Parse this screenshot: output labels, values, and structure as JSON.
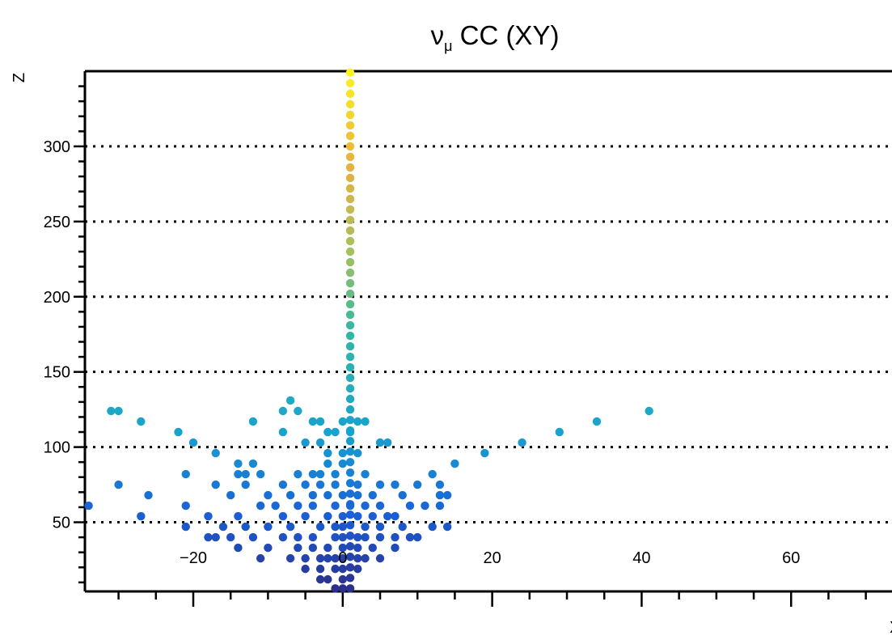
{
  "chart_data": {
    "type": "scatter",
    "title": "ν_μ CC (XY)",
    "title_main": "ν",
    "title_sub": "μ",
    "title_rest": " CC (XY)",
    "xlabel": "X",
    "ylabel": "Z",
    "xlim": [
      -34.5,
      73.5
    ],
    "ylim": [
      4,
      350
    ],
    "x_ticks": [
      -20,
      0,
      20,
      40,
      60
    ],
    "y_ticks": [
      50,
      100,
      150,
      200,
      250,
      300
    ],
    "grid": "horizontal-dotted",
    "colormap": [
      "#2c2f8c",
      "#1a5fd6",
      "#18a2cf",
      "#34b7a3",
      "#a5c05f",
      "#e6b13f",
      "#fbf41f"
    ],
    "series": [
      {
        "points": [
          [
            1,
            6
          ],
          [
            1,
            13
          ],
          [
            1,
            20
          ],
          [
            1,
            27
          ],
          [
            1,
            34
          ],
          [
            1,
            41
          ],
          [
            1,
            48
          ],
          [
            1,
            55
          ],
          [
            1,
            62
          ],
          [
            1,
            69
          ],
          [
            1,
            76
          ],
          [
            1,
            83
          ],
          [
            1,
            90
          ],
          [
            1,
            97
          ],
          [
            1,
            104
          ],
          [
            1,
            111
          ],
          [
            1,
            118
          ],
          [
            1,
            125
          ],
          [
            1,
            132
          ],
          [
            1,
            139
          ],
          [
            1,
            146
          ],
          [
            1,
            153
          ],
          [
            1,
            160
          ],
          [
            1,
            167
          ],
          [
            1,
            174
          ],
          [
            1,
            181
          ],
          [
            1,
            188
          ],
          [
            1,
            195
          ],
          [
            1,
            202
          ],
          [
            1,
            209
          ],
          [
            1,
            216
          ],
          [
            1,
            223
          ],
          [
            1,
            230
          ],
          [
            1,
            237
          ],
          [
            1,
            244
          ],
          [
            1,
            251
          ],
          [
            1,
            258
          ],
          [
            1,
            265
          ],
          [
            1,
            272
          ],
          [
            1,
            279
          ],
          [
            1,
            286
          ],
          [
            1,
            293
          ],
          [
            1,
            300
          ],
          [
            1,
            307
          ],
          [
            1,
            314
          ],
          [
            1,
            321
          ],
          [
            1,
            328
          ],
          [
            1,
            335
          ],
          [
            1,
            342
          ],
          [
            1,
            349
          ],
          [
            -1,
            6
          ],
          [
            0,
            6
          ],
          [
            -3,
            12
          ],
          [
            -2,
            12
          ],
          [
            0,
            12
          ],
          [
            -5,
            19
          ],
          [
            -3,
            19
          ],
          [
            -1,
            19
          ],
          [
            0,
            19
          ],
          [
            2,
            19
          ],
          [
            -7,
            26
          ],
          [
            -5,
            26
          ],
          [
            -3,
            26
          ],
          [
            -2,
            26
          ],
          [
            -1,
            26
          ],
          [
            0,
            26
          ],
          [
            2,
            26
          ],
          [
            3,
            26
          ],
          [
            5,
            26
          ],
          [
            -11,
            26
          ],
          [
            -6,
            33
          ],
          [
            -4,
            33
          ],
          [
            -2,
            33
          ],
          [
            0,
            33
          ],
          [
            2,
            33
          ],
          [
            4,
            33
          ],
          [
            7,
            33
          ],
          [
            -14,
            33
          ],
          [
            -10,
            33
          ],
          [
            -18,
            40
          ],
          [
            -17,
            40
          ],
          [
            -15,
            40
          ],
          [
            -12,
            40
          ],
          [
            -8,
            40
          ],
          [
            -6,
            40
          ],
          [
            -4,
            40
          ],
          [
            -1,
            40
          ],
          [
            0,
            40
          ],
          [
            2,
            40
          ],
          [
            3,
            40
          ],
          [
            5,
            40
          ],
          [
            7,
            40
          ],
          [
            9,
            40
          ],
          [
            10,
            40
          ],
          [
            -21,
            47
          ],
          [
            -16,
            47
          ],
          [
            -13,
            47
          ],
          [
            -10,
            47
          ],
          [
            -7,
            47
          ],
          [
            -3,
            47
          ],
          [
            -1,
            47
          ],
          [
            0,
            47
          ],
          [
            3,
            47
          ],
          [
            5,
            47
          ],
          [
            8,
            47
          ],
          [
            12,
            47
          ],
          [
            14,
            47
          ],
          [
            -34,
            61
          ],
          [
            -27,
            54
          ],
          [
            -18,
            54
          ],
          [
            -14,
            54
          ],
          [
            -8,
            54
          ],
          [
            -5,
            54
          ],
          [
            -2,
            54
          ],
          [
            0,
            54
          ],
          [
            2,
            54
          ],
          [
            4,
            54
          ],
          [
            6,
            54
          ],
          [
            7,
            54
          ],
          [
            -21,
            61
          ],
          [
            -11,
            61
          ],
          [
            -9,
            61
          ],
          [
            -6,
            61
          ],
          [
            -4,
            61
          ],
          [
            -1,
            61
          ],
          [
            1,
            61
          ],
          [
            3,
            61
          ],
          [
            5,
            61
          ],
          [
            9,
            61
          ],
          [
            11,
            61
          ],
          [
            13,
            61
          ],
          [
            -26,
            68
          ],
          [
            -15,
            68
          ],
          [
            -10,
            68
          ],
          [
            -7,
            68
          ],
          [
            -4,
            68
          ],
          [
            -2,
            68
          ],
          [
            0,
            68
          ],
          [
            2,
            68
          ],
          [
            4,
            68
          ],
          [
            8,
            68
          ],
          [
            13,
            68
          ],
          [
            14,
            68
          ],
          [
            -30,
            75
          ],
          [
            -17,
            75
          ],
          [
            -13,
            75
          ],
          [
            -8,
            75
          ],
          [
            -5,
            75
          ],
          [
            -3,
            75
          ],
          [
            -1,
            75
          ],
          [
            2,
            75
          ],
          [
            5,
            75
          ],
          [
            7,
            75
          ],
          [
            10,
            75
          ],
          [
            13,
            75
          ],
          [
            -21,
            82
          ],
          [
            -14,
            82
          ],
          [
            -13,
            82
          ],
          [
            -11,
            82
          ],
          [
            -6,
            82
          ],
          [
            -4,
            82
          ],
          [
            -3,
            82
          ],
          [
            -1,
            82
          ],
          [
            3,
            82
          ],
          [
            12,
            82
          ],
          [
            -14,
            89
          ],
          [
            -12,
            89
          ],
          [
            15,
            89
          ],
          [
            -2,
            89
          ],
          [
            0,
            89
          ],
          [
            -17,
            96
          ],
          [
            -2,
            96
          ],
          [
            0,
            96
          ],
          [
            2,
            96
          ],
          [
            19,
            96
          ],
          [
            -20,
            103
          ],
          [
            -5,
            103
          ],
          [
            -3,
            103
          ],
          [
            5,
            103
          ],
          [
            6,
            103
          ],
          [
            24,
            103
          ],
          [
            -22,
            110
          ],
          [
            -8,
            110
          ],
          [
            -2,
            110
          ],
          [
            -1,
            110
          ],
          [
            1,
            110
          ],
          [
            29,
            110
          ],
          [
            -27,
            117
          ],
          [
            -12,
            117
          ],
          [
            -4,
            117
          ],
          [
            -3,
            117
          ],
          [
            0,
            117
          ],
          [
            2,
            117
          ],
          [
            3,
            117
          ],
          [
            34,
            117
          ],
          [
            -31,
            124
          ],
          [
            -30,
            124
          ],
          [
            -8,
            124
          ],
          [
            -6,
            124
          ],
          [
            41,
            124
          ],
          [
            -7,
            131
          ]
        ]
      }
    ]
  }
}
